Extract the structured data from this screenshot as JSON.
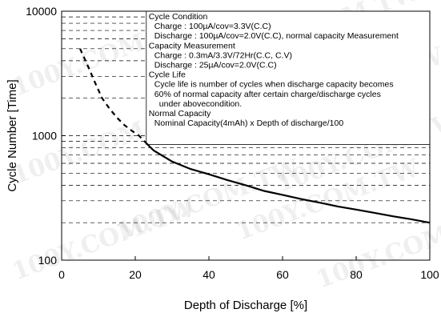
{
  "chart_data": {
    "type": "line",
    "title": "",
    "xlabel": "Depth of Discharge [%]",
    "ylabel": "Cycle Number [Time]",
    "xlim": [
      0,
      100
    ],
    "ylim": [
      100,
      10000
    ],
    "yscale": "log",
    "grid": "horizontal dashed lines in upper-left region",
    "x_ticks": [
      "0",
      "20",
      "40",
      "60",
      "80",
      "100"
    ],
    "y_ticks": [
      "100",
      "1000",
      "10000"
    ],
    "series": [
      {
        "style": "dashed",
        "x": [
          5,
          7,
          9,
          11,
          13,
          15,
          17,
          19,
          21,
          23
        ],
        "y": [
          5000,
          3700,
          2700,
          2000,
          1650,
          1400,
          1220,
          1100,
          1000,
          870
        ]
      },
      {
        "style": "solid",
        "x": [
          23,
          25,
          30,
          35,
          40,
          45,
          50,
          55,
          60,
          65,
          70,
          75,
          80,
          85,
          90,
          95,
          100
        ],
        "y": [
          870,
          760,
          620,
          540,
          490,
          440,
          400,
          360,
          335,
          310,
          290,
          270,
          255,
          240,
          225,
          213,
          200
        ]
      }
    ],
    "annotations": [
      "Cycle Condition",
      "Charge : 100µA/cov=3.3V(C.C)",
      "Discharge : 100µA/cov=2.0V(C.C), normal capacity Measurement",
      "Capacity Measurement",
      "Charge : 0.3mA/3.3V/72Hr(C.C, C.V)",
      "Discharge : 25µA/cov=2.0V(C.C)",
      "Cycle Life",
      "Cycle life is number of cycles when discharge capacity becomes",
      "60% of normal capacity after certain charge/discharge cycles",
      "under abovecondition.",
      "Normal Capacity",
      "Nominal Capacity(4mAh) x Depth of discharge/100"
    ],
    "watermark": "100Y.COM.TW"
  }
}
